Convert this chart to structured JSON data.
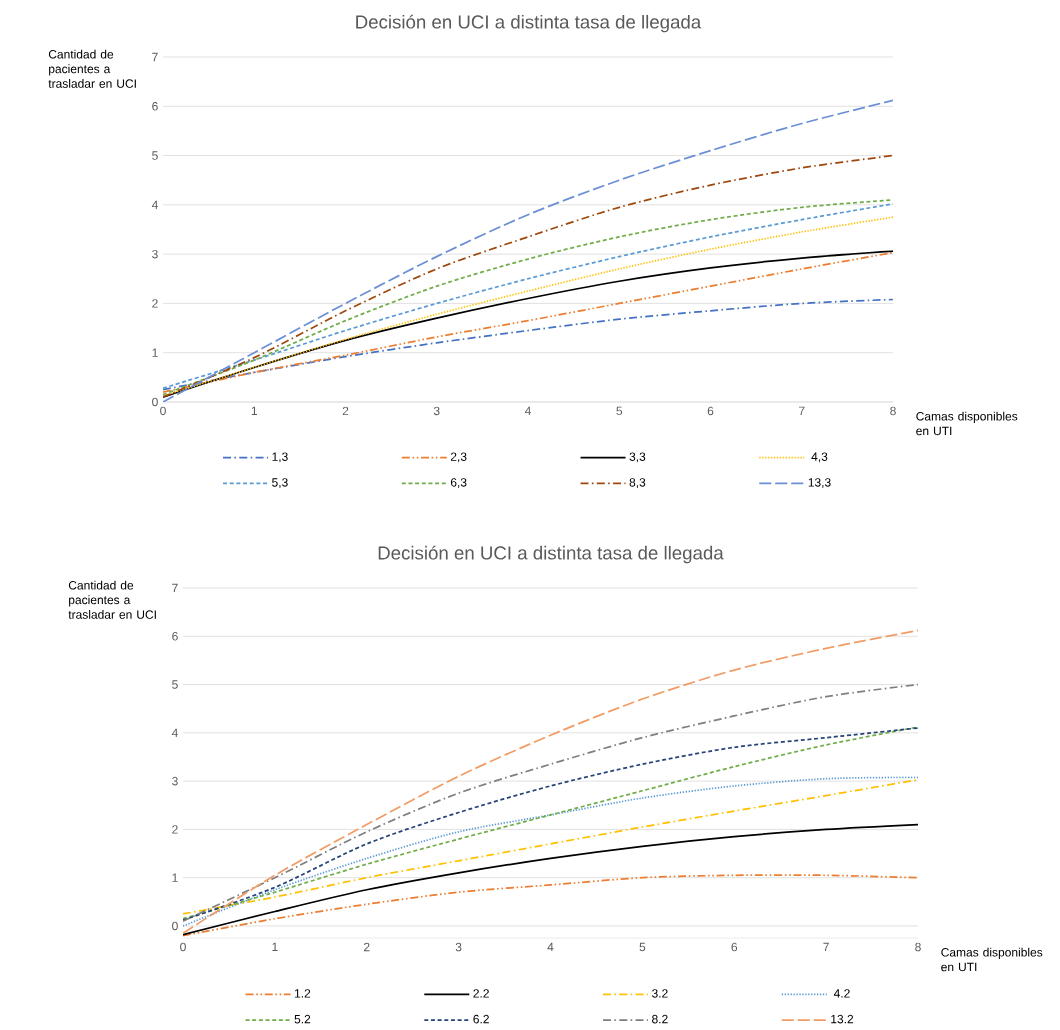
{
  "chart_data": [
    {
      "type": "line",
      "title": "Decisión en UCI a distinta tasa de llegada",
      "xlabel": "Camas disponibles en UTI",
      "ylabel": "Cantidad de pacientes a trasladar en UCI",
      "x": [
        0,
        1,
        2,
        3,
        4,
        5,
        6,
        7,
        8
      ],
      "xlim": [
        0,
        8
      ],
      "xticks": [
        0,
        1,
        2,
        3,
        4,
        5,
        6,
        7,
        8
      ],
      "ylim": [
        0,
        7
      ],
      "yticks": [
        0,
        1,
        2,
        3,
        4,
        5,
        6,
        7
      ],
      "grid": "y",
      "legend": "bottom",
      "series": [
        {
          "name": "1,3",
          "color": "#4472c4",
          "line_style": "dashdot",
          "values": [
            0.25,
            0.6,
            0.92,
            1.2,
            1.45,
            1.68,
            1.85,
            2.0,
            2.08
          ]
        },
        {
          "name": "2,3",
          "color": "#ed7d31",
          "line_style": "dashdotdot",
          "values": [
            0.2,
            0.6,
            0.95,
            1.32,
            1.65,
            2.0,
            2.35,
            2.7,
            3.03
          ]
        },
        {
          "name": "3,3",
          "color": "#000000",
          "line_style": "solid",
          "values": [
            0.1,
            0.7,
            1.25,
            1.7,
            2.1,
            2.45,
            2.72,
            2.92,
            3.06
          ]
        },
        {
          "name": "4,3",
          "color": "#ffc000",
          "line_style": "dotted",
          "values": [
            0.12,
            0.7,
            1.27,
            1.78,
            2.25,
            2.7,
            3.1,
            3.45,
            3.75
          ]
        },
        {
          "name": "5,3",
          "color": "#5b9bd5",
          "line_style": "dashed",
          "values": [
            0.28,
            0.85,
            1.45,
            2.0,
            2.5,
            2.95,
            3.35,
            3.7,
            4.02
          ]
        },
        {
          "name": "6,3",
          "color": "#70ad47",
          "line_style": "dashed",
          "values": [
            0.15,
            0.85,
            1.65,
            2.35,
            2.9,
            3.35,
            3.7,
            3.95,
            4.1
          ]
        },
        {
          "name": "8,3",
          "color": "#9e480e",
          "line_style": "dashdot",
          "values": [
            0.1,
            0.9,
            1.85,
            2.7,
            3.35,
            3.95,
            4.4,
            4.75,
            5.0
          ]
        },
        {
          "name": "13,3",
          "color": "#6b8fd6",
          "line_style": "longdash",
          "values": [
            0.0,
            1.0,
            2.0,
            2.95,
            3.8,
            4.5,
            5.1,
            5.65,
            6.12
          ]
        }
      ]
    },
    {
      "type": "line",
      "title": "Decisión en UCI a distinta tasa de llegada",
      "xlabel": "Camas disponibles en UTI",
      "ylabel": "Cantidad de pacientes a trasladar en UCI",
      "x": [
        0,
        1,
        2,
        3,
        4,
        5,
        6,
        7,
        8
      ],
      "xlim": [
        0,
        8
      ],
      "xticks": [
        0,
        1,
        2,
        3,
        4,
        5,
        6,
        7,
        8
      ],
      "ylim": [
        -0.25,
        7
      ],
      "yticks": [
        0,
        1,
        2,
        3,
        4,
        5,
        6,
        7
      ],
      "grid": "y",
      "legend": "bottom",
      "series": [
        {
          "name": "1.2",
          "color": "#ed7d31",
          "line_style": "dashdotdot",
          "values": [
            -0.2,
            0.15,
            0.45,
            0.7,
            0.85,
            1.0,
            1.05,
            1.05,
            1.0
          ]
        },
        {
          "name": "2.2",
          "color": "#000000",
          "line_style": "solid",
          "values": [
            -0.18,
            0.3,
            0.75,
            1.1,
            1.4,
            1.65,
            1.85,
            2.0,
            2.1
          ]
        },
        {
          "name": "3.2",
          "color": "#ffc000",
          "line_style": "dashdot",
          "values": [
            0.25,
            0.6,
            1.0,
            1.35,
            1.7,
            2.05,
            2.38,
            2.7,
            3.03
          ]
        },
        {
          "name": "4.2",
          "color": "#5b9bd5",
          "line_style": "dotted",
          "values": [
            0.0,
            0.75,
            1.4,
            1.95,
            2.3,
            2.65,
            2.9,
            3.05,
            3.08
          ]
        },
        {
          "name": "5.2",
          "color": "#70ad47",
          "line_style": "dashed",
          "values": [
            0.15,
            0.7,
            1.28,
            1.8,
            2.3,
            2.8,
            3.3,
            3.75,
            4.12
          ]
        },
        {
          "name": "6.2",
          "color": "#264478",
          "line_style": "dashed",
          "values": [
            0.12,
            0.8,
            1.7,
            2.35,
            2.9,
            3.35,
            3.7,
            3.9,
            4.1
          ]
        },
        {
          "name": "8.2",
          "color": "#7f7f7f",
          "line_style": "dashdot",
          "values": [
            0.1,
            1.0,
            1.95,
            2.75,
            3.35,
            3.9,
            4.35,
            4.75,
            5.0
          ]
        },
        {
          "name": "13.2",
          "color": "#f19c65",
          "line_style": "longdash",
          "values": [
            -0.15,
            1.05,
            2.1,
            3.1,
            3.95,
            4.7,
            5.3,
            5.75,
            6.12
          ]
        }
      ]
    }
  ]
}
